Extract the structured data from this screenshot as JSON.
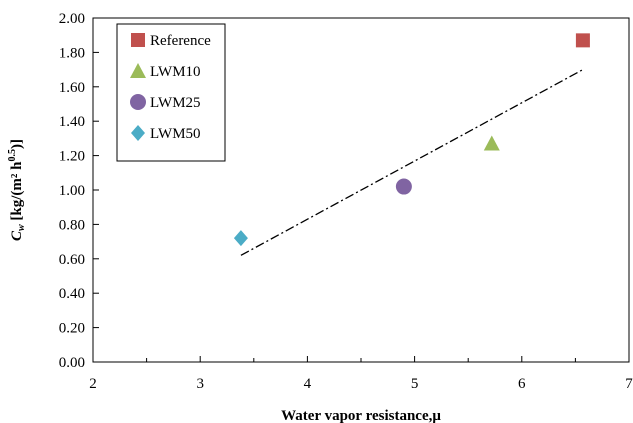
{
  "chart_data": {
    "type": "scatter",
    "xlabel": "Water vapor resistance,μ",
    "ylabel": "Cw [kg/(m² h0.5)]",
    "ylabel_parts": {
      "main": "C",
      "sub": "w",
      "rest": " [kg/(m² h",
      "sup": "0.5",
      "end": ")]"
    },
    "xlim": [
      2,
      7
    ],
    "ylim": [
      0,
      2
    ],
    "x_ticks": [
      "2",
      "3",
      "4",
      "5",
      "6",
      "7"
    ],
    "y_ticks": [
      "0.00",
      "0.20",
      "0.40",
      "0.60",
      "0.80",
      "1.00",
      "1.20",
      "1.40",
      "1.60",
      "1.80",
      "2.00"
    ],
    "grid": false,
    "legend_position": "top-left",
    "series": [
      {
        "name": "Reference",
        "marker": "square",
        "color": "#c0504d",
        "x": [
          6.57
        ],
        "y": [
          1.87
        ]
      },
      {
        "name": "LWM10",
        "marker": "triangle",
        "color": "#9bbb59",
        "x": [
          5.72
        ],
        "y": [
          1.27
        ]
      },
      {
        "name": "LWM25",
        "marker": "circle",
        "color": "#8064a2",
        "x": [
          4.9
        ],
        "y": [
          1.02
        ]
      },
      {
        "name": "LWM50",
        "marker": "diamond",
        "color": "#4bacc6",
        "x": [
          3.38
        ],
        "y": [
          0.72
        ]
      }
    ],
    "trendline": {
      "style": "dash-dot",
      "color": "#000000",
      "x": [
        3.38,
        6.57
      ],
      "y": [
        0.62,
        1.7
      ]
    }
  }
}
